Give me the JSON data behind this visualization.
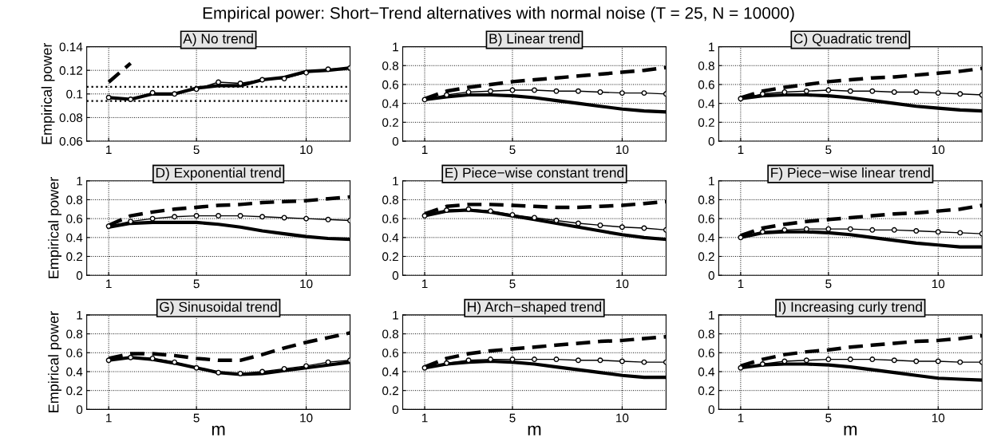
{
  "chart_data": [
    {
      "type": "line",
      "title": "A) No trend",
      "annotations": [
        "Empirical power: Short−Trend alternatives with normal noise (T = 25, N = 10000)"
      ],
      "ylabel": "Empirical power",
      "x": [
        1,
        2,
        3,
        4,
        5,
        6,
        7,
        8,
        9,
        10,
        11,
        12
      ],
      "xlim": [
        0,
        12
      ],
      "xticks": [
        1,
        5,
        10
      ],
      "ylim": [
        0.06,
        0.14
      ],
      "yticks": [
        0.06,
        0.08,
        0.1,
        0.12,
        0.14
      ],
      "grid": true,
      "ref_lines": [
        {
          "axis": "y",
          "value": 0.094,
          "line_style": "dotted",
          "color": "#000000"
        },
        {
          "axis": "y",
          "value": 0.106,
          "line_style": "dotted",
          "color": "#000000"
        }
      ],
      "series": [
        {
          "color": "#000000",
          "line_style": "dashed",
          "marker": "none",
          "values": [
            0.11,
            0.126,
            null,
            null,
            null,
            null,
            null,
            null,
            null,
            null,
            null,
            null
          ]
        },
        {
          "color": "#000000",
          "line_style": "solid",
          "marker": "none",
          "values": [
            0.097,
            0.0955,
            0.1,
            0.1,
            0.105,
            0.107,
            0.107,
            0.112,
            0.114,
            0.119,
            0.12,
            0.122
          ]
        },
        {
          "color": "#000000",
          "line_style": "solid",
          "marker": "circle",
          "values": [
            0.097,
            0.0955,
            0.101,
            0.1,
            0.104,
            0.11,
            0.109,
            0.112,
            0.113,
            0.118,
            0.121,
            0.122
          ]
        }
      ]
    },
    {
      "type": "line",
      "title": "B) Linear trend",
      "x": [
        1,
        2,
        3,
        4,
        5,
        6,
        7,
        8,
        9,
        10,
        11,
        12
      ],
      "xlim": [
        0,
        12
      ],
      "xticks": [
        1,
        5,
        10
      ],
      "ylim": [
        0,
        1
      ],
      "yticks": [
        0,
        0.2,
        0.4,
        0.6,
        0.8,
        1
      ],
      "grid": true,
      "series": [
        {
          "color": "#000000",
          "line_style": "dashed",
          "marker": "none",
          "values": [
            0.45,
            0.53,
            0.57,
            0.6,
            0.63,
            0.65,
            0.67,
            0.69,
            0.71,
            0.73,
            0.75,
            0.78
          ]
        },
        {
          "color": "#000000",
          "line_style": "solid",
          "marker": "none",
          "values": [
            0.44,
            0.47,
            0.49,
            0.49,
            0.48,
            0.46,
            0.43,
            0.4,
            0.37,
            0.34,
            0.32,
            0.31
          ]
        },
        {
          "color": "#000000",
          "line_style": "solid",
          "marker": "circle",
          "values": [
            0.44,
            0.49,
            0.52,
            0.53,
            0.54,
            0.54,
            0.53,
            0.53,
            0.52,
            0.51,
            0.51,
            0.5
          ]
        }
      ]
    },
    {
      "type": "line",
      "title": "C) Quadratic trend",
      "x": [
        1,
        2,
        3,
        4,
        5,
        6,
        7,
        8,
        9,
        10,
        11,
        12
      ],
      "xlim": [
        0,
        12
      ],
      "xticks": [
        1,
        5,
        10
      ],
      "ylim": [
        0,
        1
      ],
      "yticks": [
        0,
        0.2,
        0.4,
        0.6,
        0.8,
        1
      ],
      "grid": true,
      "series": [
        {
          "color": "#000000",
          "line_style": "dashed",
          "marker": "none",
          "values": [
            0.46,
            0.53,
            0.57,
            0.6,
            0.63,
            0.65,
            0.67,
            0.68,
            0.7,
            0.72,
            0.74,
            0.77
          ]
        },
        {
          "color": "#000000",
          "line_style": "solid",
          "marker": "none",
          "values": [
            0.45,
            0.48,
            0.49,
            0.49,
            0.48,
            0.46,
            0.43,
            0.4,
            0.37,
            0.35,
            0.33,
            0.32
          ]
        },
        {
          "color": "#000000",
          "line_style": "solid",
          "marker": "circle",
          "values": [
            0.45,
            0.5,
            0.52,
            0.53,
            0.54,
            0.53,
            0.53,
            0.52,
            0.52,
            0.51,
            0.5,
            0.49
          ]
        }
      ]
    },
    {
      "type": "line",
      "title": "D) Exponential trend",
      "ylabel": "Empirical power",
      "x": [
        1,
        2,
        3,
        4,
        5,
        6,
        7,
        8,
        9,
        10,
        11,
        12
      ],
      "xlim": [
        0,
        12
      ],
      "xticks": [
        1,
        5,
        10
      ],
      "ylim": [
        0,
        1
      ],
      "yticks": [
        0,
        0.2,
        0.4,
        0.6,
        0.8,
        1
      ],
      "grid": true,
      "series": [
        {
          "color": "#000000",
          "line_style": "dashed",
          "marker": "none",
          "values": [
            0.53,
            0.63,
            0.67,
            0.7,
            0.72,
            0.74,
            0.75,
            0.77,
            0.78,
            0.79,
            0.81,
            0.83
          ]
        },
        {
          "color": "#000000",
          "line_style": "solid",
          "marker": "none",
          "values": [
            0.51,
            0.55,
            0.56,
            0.56,
            0.56,
            0.54,
            0.51,
            0.47,
            0.44,
            0.41,
            0.39,
            0.38
          ]
        },
        {
          "color": "#000000",
          "line_style": "solid",
          "marker": "circle",
          "values": [
            0.52,
            0.57,
            0.6,
            0.62,
            0.63,
            0.63,
            0.63,
            0.62,
            0.61,
            0.6,
            0.59,
            0.58
          ]
        }
      ]
    },
    {
      "type": "line",
      "title": "E) Piece−wise constant trend",
      "x": [
        1,
        2,
        3,
        4,
        5,
        6,
        7,
        8,
        9,
        10,
        11,
        12
      ],
      "xlim": [
        0,
        12
      ],
      "xticks": [
        1,
        5,
        10
      ],
      "ylim": [
        0,
        1
      ],
      "yticks": [
        0,
        0.2,
        0.4,
        0.6,
        0.8,
        1
      ],
      "grid": true,
      "series": [
        {
          "color": "#000000",
          "line_style": "dashed",
          "marker": "none",
          "values": [
            0.65,
            0.73,
            0.75,
            0.75,
            0.74,
            0.73,
            0.72,
            0.72,
            0.73,
            0.74,
            0.76,
            0.78
          ]
        },
        {
          "color": "#000000",
          "line_style": "solid",
          "marker": "none",
          "values": [
            0.63,
            0.68,
            0.69,
            0.67,
            0.63,
            0.59,
            0.55,
            0.51,
            0.47,
            0.43,
            0.4,
            0.38
          ]
        },
        {
          "color": "#000000",
          "line_style": "solid",
          "marker": "circle",
          "values": [
            0.63,
            0.69,
            0.7,
            0.68,
            0.64,
            0.61,
            0.58,
            0.55,
            0.53,
            0.51,
            0.5,
            0.48
          ]
        }
      ]
    },
    {
      "type": "line",
      "title": "F) Piece−wise linear trend",
      "x": [
        1,
        2,
        3,
        4,
        5,
        6,
        7,
        8,
        9,
        10,
        11,
        12
      ],
      "xlim": [
        0,
        12
      ],
      "xticks": [
        1,
        5,
        10
      ],
      "ylim": [
        0,
        1
      ],
      "yticks": [
        0,
        0.2,
        0.4,
        0.6,
        0.8,
        1
      ],
      "grid": true,
      "series": [
        {
          "color": "#000000",
          "line_style": "dashed",
          "marker": "none",
          "values": [
            0.42,
            0.5,
            0.54,
            0.57,
            0.59,
            0.61,
            0.63,
            0.65,
            0.66,
            0.68,
            0.7,
            0.74
          ]
        },
        {
          "color": "#000000",
          "line_style": "solid",
          "marker": "none",
          "values": [
            0.4,
            0.45,
            0.46,
            0.46,
            0.45,
            0.43,
            0.4,
            0.37,
            0.34,
            0.32,
            0.3,
            0.3
          ]
        },
        {
          "color": "#000000",
          "line_style": "solid",
          "marker": "circle",
          "values": [
            0.4,
            0.46,
            0.48,
            0.49,
            0.49,
            0.49,
            0.48,
            0.48,
            0.47,
            0.46,
            0.45,
            0.44
          ]
        }
      ]
    },
    {
      "type": "line",
      "title": "G) Sinusoidal trend",
      "ylabel": "Empirical power",
      "xlabel": "m",
      "x": [
        1,
        2,
        3,
        4,
        5,
        6,
        7,
        8,
        9,
        10,
        11,
        12
      ],
      "xlim": [
        0,
        12
      ],
      "xticks": [
        1,
        5,
        10
      ],
      "ylim": [
        0,
        1
      ],
      "yticks": [
        0,
        0.2,
        0.4,
        0.6,
        0.8,
        1
      ],
      "grid": true,
      "series": [
        {
          "color": "#000000",
          "line_style": "dashed",
          "marker": "none",
          "values": [
            0.54,
            0.59,
            0.59,
            0.57,
            0.54,
            0.52,
            0.52,
            0.58,
            0.65,
            0.71,
            0.76,
            0.81
          ]
        },
        {
          "color": "#000000",
          "line_style": "solid",
          "marker": "none",
          "values": [
            0.52,
            0.55,
            0.53,
            0.49,
            0.44,
            0.39,
            0.37,
            0.38,
            0.41,
            0.44,
            0.47,
            0.5
          ]
        },
        {
          "color": "#000000",
          "line_style": "solid",
          "marker": "circle",
          "values": [
            0.52,
            0.55,
            0.54,
            0.5,
            0.44,
            0.39,
            0.38,
            0.4,
            0.43,
            0.46,
            0.5,
            0.52
          ]
        }
      ]
    },
    {
      "type": "line",
      "title": "H) Arch−shaped trend",
      "xlabel": "m",
      "x": [
        1,
        2,
        3,
        4,
        5,
        6,
        7,
        8,
        9,
        10,
        11,
        12
      ],
      "xlim": [
        0,
        12
      ],
      "xticks": [
        1,
        5,
        10
      ],
      "ylim": [
        0,
        1
      ],
      "yticks": [
        0,
        0.2,
        0.4,
        0.6,
        0.8,
        1
      ],
      "grid": true,
      "series": [
        {
          "color": "#000000",
          "line_style": "dashed",
          "marker": "none",
          "values": [
            0.45,
            0.54,
            0.59,
            0.62,
            0.64,
            0.66,
            0.68,
            0.7,
            0.72,
            0.73,
            0.75,
            0.77
          ]
        },
        {
          "color": "#000000",
          "line_style": "solid",
          "marker": "none",
          "values": [
            0.44,
            0.48,
            0.5,
            0.51,
            0.5,
            0.48,
            0.45,
            0.42,
            0.39,
            0.36,
            0.34,
            0.34
          ]
        },
        {
          "color": "#000000",
          "line_style": "solid",
          "marker": "circle",
          "values": [
            0.44,
            0.49,
            0.52,
            0.53,
            0.53,
            0.53,
            0.53,
            0.52,
            0.52,
            0.51,
            0.5,
            0.5
          ]
        }
      ]
    },
    {
      "type": "line",
      "title": "I) Increasing curly trend",
      "xlabel": "m",
      "x": [
        1,
        2,
        3,
        4,
        5,
        6,
        7,
        8,
        9,
        10,
        11,
        12
      ],
      "xlim": [
        0,
        12
      ],
      "xticks": [
        1,
        5,
        10
      ],
      "ylim": [
        0,
        1
      ],
      "yticks": [
        0,
        0.2,
        0.4,
        0.6,
        0.8,
        1
      ],
      "grid": true,
      "series": [
        {
          "color": "#000000",
          "line_style": "dashed",
          "marker": "none",
          "values": [
            0.46,
            0.53,
            0.58,
            0.61,
            0.63,
            0.66,
            0.68,
            0.7,
            0.72,
            0.73,
            0.75,
            0.78
          ]
        },
        {
          "color": "#000000",
          "line_style": "solid",
          "marker": "none",
          "values": [
            0.44,
            0.47,
            0.48,
            0.48,
            0.47,
            0.45,
            0.42,
            0.39,
            0.36,
            0.33,
            0.32,
            0.31
          ]
        },
        {
          "color": "#000000",
          "line_style": "solid",
          "marker": "circle",
          "values": [
            0.44,
            0.48,
            0.51,
            0.52,
            0.53,
            0.53,
            0.53,
            0.52,
            0.51,
            0.51,
            0.5,
            0.5
          ]
        }
      ]
    }
  ]
}
